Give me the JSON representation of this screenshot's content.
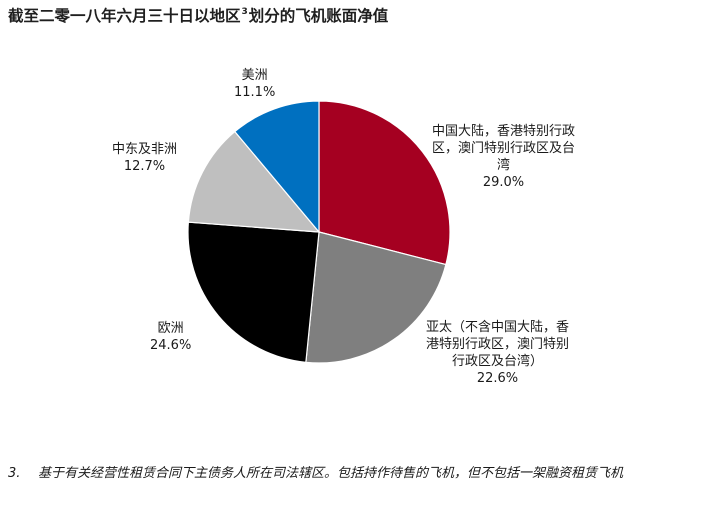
{
  "title": {
    "before": "截至二零一八年六月三十日以地区",
    "sup": "3",
    "after": "划分的飞机账面净值"
  },
  "chart_data": {
    "type": "pie",
    "title": "截至二零一八年六月三十日以地区³划分的飞机账面净值",
    "slices": [
      {
        "label": "中国大陆，香港特别行政区，澳门特别行政区及台湾",
        "label_lines": [
          "中国大陆，香港特别行政",
          "区，澳门特别行政区及台",
          "湾"
        ],
        "value": 29.0,
        "value_text": "29.0%",
        "color": "#A50021"
      },
      {
        "label": "亚太（不含中国大陆，香港特别行政区，澳门特别行政区及台湾）",
        "label_lines": [
          "亚太（不含中国大陆，香",
          "港特别行政区，澳门特别",
          "行政区及台湾）"
        ],
        "value": 22.6,
        "value_text": "22.6%",
        "color": "#7F7F7F"
      },
      {
        "label": "欧洲",
        "label_lines": [
          "欧洲"
        ],
        "value": 24.6,
        "value_text": "24.6%",
        "color": "#000000"
      },
      {
        "label": "中东及非洲",
        "label_lines": [
          "中东及非洲"
        ],
        "value": 12.7,
        "value_text": "12.7%",
        "color": "#BFBFBF"
      },
      {
        "label": "美洲",
        "label_lines": [
          "美洲"
        ],
        "value": 11.1,
        "value_text": "11.1%",
        "color": "#0070C0"
      }
    ],
    "start_angle_deg": 0,
    "direction": "clockwise"
  },
  "footnote": {
    "number": "3.",
    "text": "基于有关经营性租赁合同下主债务人所在司法辖区。包括持作待售的飞机，但不包括一架融资租赁飞机"
  }
}
